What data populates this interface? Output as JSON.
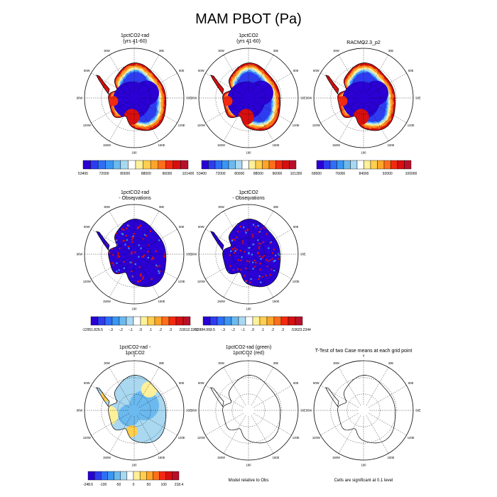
{
  "title": "MAM PBOT (Pa)",
  "palettes": {
    "main": [
      "#2a00d4",
      "#2e3cf0",
      "#2f6ef5",
      "#3a95f3",
      "#6bb9ee",
      "#a9d8f0",
      "#ffffff",
      "#fff09a",
      "#ffcf4e",
      "#ffa52a",
      "#ff6e1a",
      "#f22a12",
      "#d80f0f",
      "#b8102b"
    ],
    "diff": [
      "#2a00d4",
      "#2e3cf0",
      "#2f6ef5",
      "#3a95f3",
      "#6bb9ee",
      "#a9d8f0",
      "#ffffff",
      "#fff09a",
      "#ffcf4e",
      "#ffa52a",
      "#ff6e1a",
      "#f22a12",
      "#d80f0f",
      "#b8102b"
    ]
  },
  "lon_labels": [
    "0",
    "30E",
    "60E",
    "90E",
    "120E",
    "150E",
    "180",
    "150W",
    "120W",
    "90W",
    "60W",
    "30W"
  ],
  "panels": [
    {
      "id": "p1",
      "title": "1pctCO2-rad\n(yrs 41-60)",
      "type": "field",
      "labelbar": [
        "53400",
        "72000",
        "80000",
        "88000",
        "96000",
        "101400"
      ],
      "seed": 3
    },
    {
      "id": "p2",
      "title": "1pctCO2\n(yrs 41-60)",
      "type": "field",
      "labelbar": [
        "53400",
        "72000",
        "80000",
        "88000",
        "96000",
        "101300"
      ],
      "seed": 5
    },
    {
      "id": "p3",
      "title": "RACMO2.3_p2",
      "type": "field",
      "labelbar": [
        "68000",
        "76000",
        "84000",
        "92000",
        "100000"
      ],
      "seed": 7
    },
    {
      "id": "p4",
      "title": "1pctCO2-rad\n- Observations",
      "type": "diffobs",
      "labelbar": [
        "-12951.825",
        "-.5",
        "-.3",
        "-.2",
        "-.1",
        ".0",
        ".1",
        ".2",
        ".3",
        ".5",
        "3612.3281"
      ],
      "seed": 11
    },
    {
      "id": "p5",
      "title": "1pctCO2\n- Observations",
      "type": "diffobs",
      "labelbar": [
        "-12884.992",
        "-.5",
        "-.3",
        "-.2",
        "-.1",
        ".0",
        ".1",
        ".2",
        ".3",
        ".5",
        "3623.2344"
      ],
      "seed": 13
    },
    {
      "id": "p6",
      "title": "1pctCO2-rad -\n1pctCO2",
      "type": "diffcase",
      "labelbar": [
        "-248.6",
        "-100",
        "-50",
        "0",
        "50",
        "100",
        "218.4"
      ],
      "seed": 17
    },
    {
      "id": "p7",
      "title": "1pctCO2-rad (green)\n1pctCO2 (red)",
      "type": "outline",
      "footnote": "Model relative to Obs"
    },
    {
      "id": "p8",
      "title": "T-Test of two Case means at each grid point",
      "type": "outline",
      "footnote": "Cells are significant at 0.1 level"
    }
  ]
}
